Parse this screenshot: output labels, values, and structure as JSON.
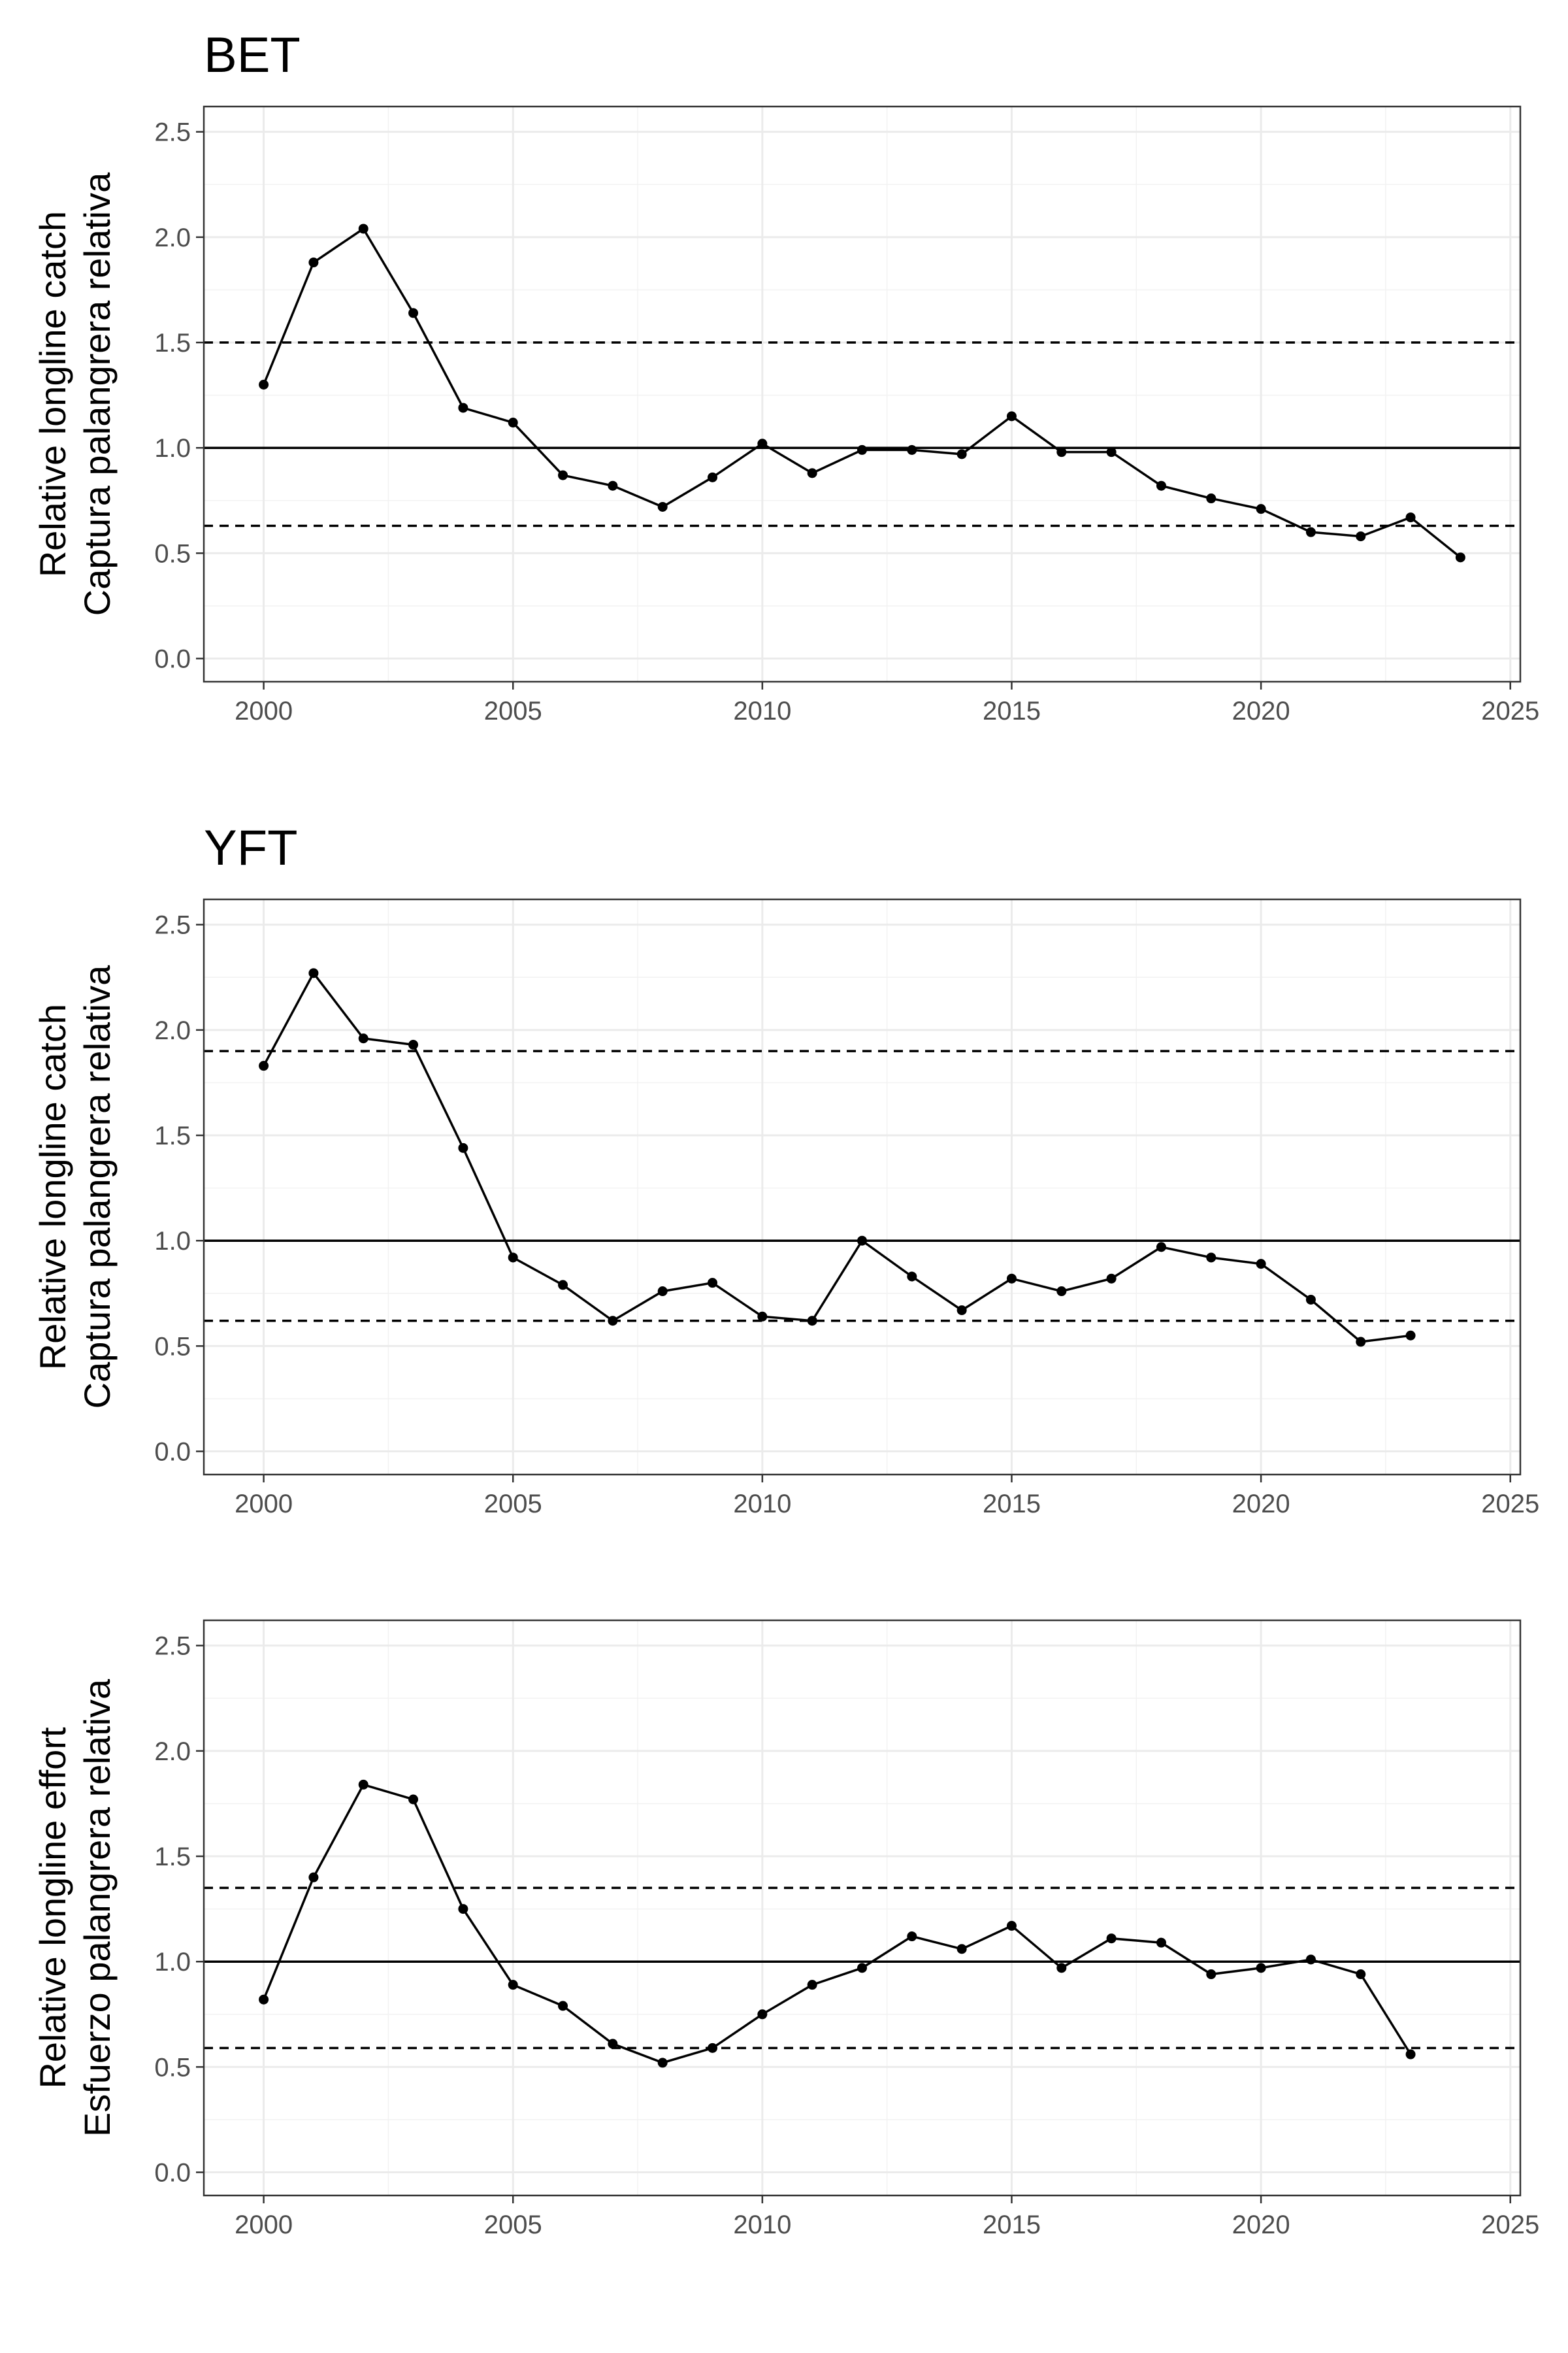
{
  "chart_data": [
    {
      "type": "line",
      "title": "BET",
      "ylabel_line1": "Relative longline catch",
      "ylabel_line2": "Captura palangrera relativa",
      "xlabel": "",
      "xlim": [
        1998.8,
        2025.2
      ],
      "ylim": [
        -0.11,
        2.62
      ],
      "x_ticks": [
        2000,
        2005,
        2010,
        2015,
        2020,
        2025
      ],
      "y_ticks": [
        0.0,
        0.5,
        1.0,
        1.5,
        2.0,
        2.5
      ],
      "x_tick_labels": [
        "2000",
        "2005",
        "2010",
        "2015",
        "2020",
        "2025"
      ],
      "y_tick_labels": [
        "0.0",
        "0.5",
        "1.0",
        "1.5",
        "2.0",
        "2.5"
      ],
      "reference_lines": [
        {
          "value": 1.0,
          "style": "solid"
        },
        {
          "value": 1.5,
          "style": "dashed"
        },
        {
          "value": 0.63,
          "style": "dashed"
        }
      ],
      "x": [
        2000,
        2001,
        2002,
        2003,
        2004,
        2005,
        2006,
        2007,
        2008,
        2009,
        2010,
        2011,
        2012,
        2013,
        2014,
        2015,
        2016,
        2017,
        2018,
        2019,
        2020,
        2021,
        2022,
        2023,
        2024
      ],
      "y": [
        1.3,
        1.88,
        2.04,
        1.64,
        1.19,
        1.12,
        0.87,
        0.82,
        0.72,
        0.86,
        1.02,
        0.88,
        0.99,
        0.99,
        0.97,
        1.15,
        0.98,
        0.98,
        0.82,
        0.76,
        0.71,
        0.6,
        0.58,
        0.67,
        0.48
      ]
    },
    {
      "type": "line",
      "title": "YFT",
      "ylabel_line1": "Relative longline catch",
      "ylabel_line2": "Captura palangrera relativa",
      "xlabel": "",
      "xlim": [
        1998.8,
        2025.2
      ],
      "ylim": [
        -0.11,
        2.62
      ],
      "x_ticks": [
        2000,
        2005,
        2010,
        2015,
        2020,
        2025
      ],
      "y_ticks": [
        0.0,
        0.5,
        1.0,
        1.5,
        2.0,
        2.5
      ],
      "x_tick_labels": [
        "2000",
        "2005",
        "2010",
        "2015",
        "2020",
        "2025"
      ],
      "y_tick_labels": [
        "0.0",
        "0.5",
        "1.0",
        "1.5",
        "2.0",
        "2.5"
      ],
      "reference_lines": [
        {
          "value": 1.0,
          "style": "solid"
        },
        {
          "value": 1.9,
          "style": "dashed"
        },
        {
          "value": 0.62,
          "style": "dashed"
        }
      ],
      "x": [
        2000,
        2001,
        2002,
        2003,
        2004,
        2005,
        2006,
        2007,
        2008,
        2009,
        2010,
        2011,
        2012,
        2013,
        2014,
        2015,
        2016,
        2017,
        2018,
        2019,
        2020,
        2021,
        2022,
        2023
      ],
      "y": [
        1.83,
        2.27,
        1.96,
        1.93,
        1.44,
        0.92,
        0.79,
        0.62,
        0.76,
        0.8,
        0.64,
        0.62,
        1.0,
        0.83,
        0.67,
        0.82,
        0.76,
        0.82,
        0.97,
        0.92,
        0.89,
        0.72,
        0.52,
        0.55
      ]
    },
    {
      "type": "line",
      "title": "",
      "ylabel_line1": "Relative longline effort",
      "ylabel_line2": "Esfuerzo palangrera relativa",
      "xlabel": "",
      "xlim": [
        1998.8,
        2025.2
      ],
      "ylim": [
        -0.11,
        2.62
      ],
      "x_ticks": [
        2000,
        2005,
        2010,
        2015,
        2020,
        2025
      ],
      "y_ticks": [
        0.0,
        0.5,
        1.0,
        1.5,
        2.0,
        2.5
      ],
      "x_tick_labels": [
        "2000",
        "2005",
        "2010",
        "2015",
        "2020",
        "2025"
      ],
      "y_tick_labels": [
        "0.0",
        "0.5",
        "1.0",
        "1.5",
        "2.0",
        "2.5"
      ],
      "reference_lines": [
        {
          "value": 1.0,
          "style": "solid"
        },
        {
          "value": 1.35,
          "style": "dashed"
        },
        {
          "value": 0.59,
          "style": "dashed"
        }
      ],
      "x": [
        2000,
        2001,
        2002,
        2003,
        2004,
        2005,
        2006,
        2007,
        2008,
        2009,
        2010,
        2011,
        2012,
        2013,
        2014,
        2015,
        2016,
        2017,
        2018,
        2019,
        2020,
        2021,
        2022,
        2023
      ],
      "y": [
        0.82,
        1.4,
        1.84,
        1.77,
        1.25,
        0.89,
        0.79,
        0.61,
        0.52,
        0.59,
        0.75,
        0.89,
        0.97,
        1.12,
        1.06,
        1.17,
        0.97,
        1.11,
        1.09,
        0.94,
        0.97,
        1.01,
        0.94,
        0.56
      ]
    }
  ]
}
